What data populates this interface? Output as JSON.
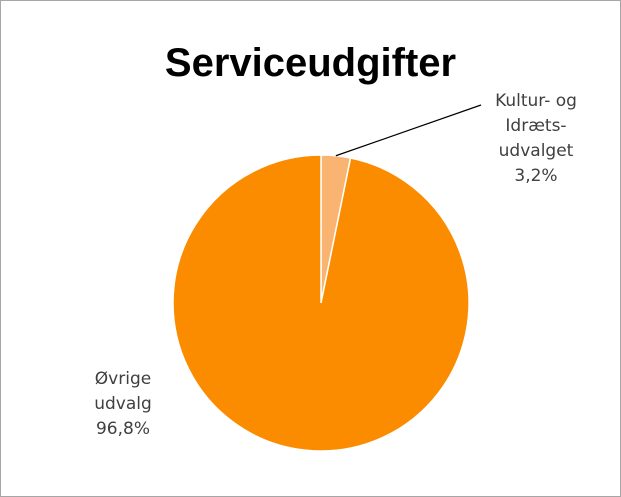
{
  "chart_data": {
    "type": "pie",
    "title": "Serviceudgifter",
    "categories": [
      "Kultur- og Idræts-udvalget",
      "Øvrige udvalg"
    ],
    "values": [
      3.2,
      96.8
    ],
    "value_labels": [
      "3,2%",
      "96,8%"
    ],
    "colors": [
      "#fab472",
      "#fb8c00"
    ]
  }
}
